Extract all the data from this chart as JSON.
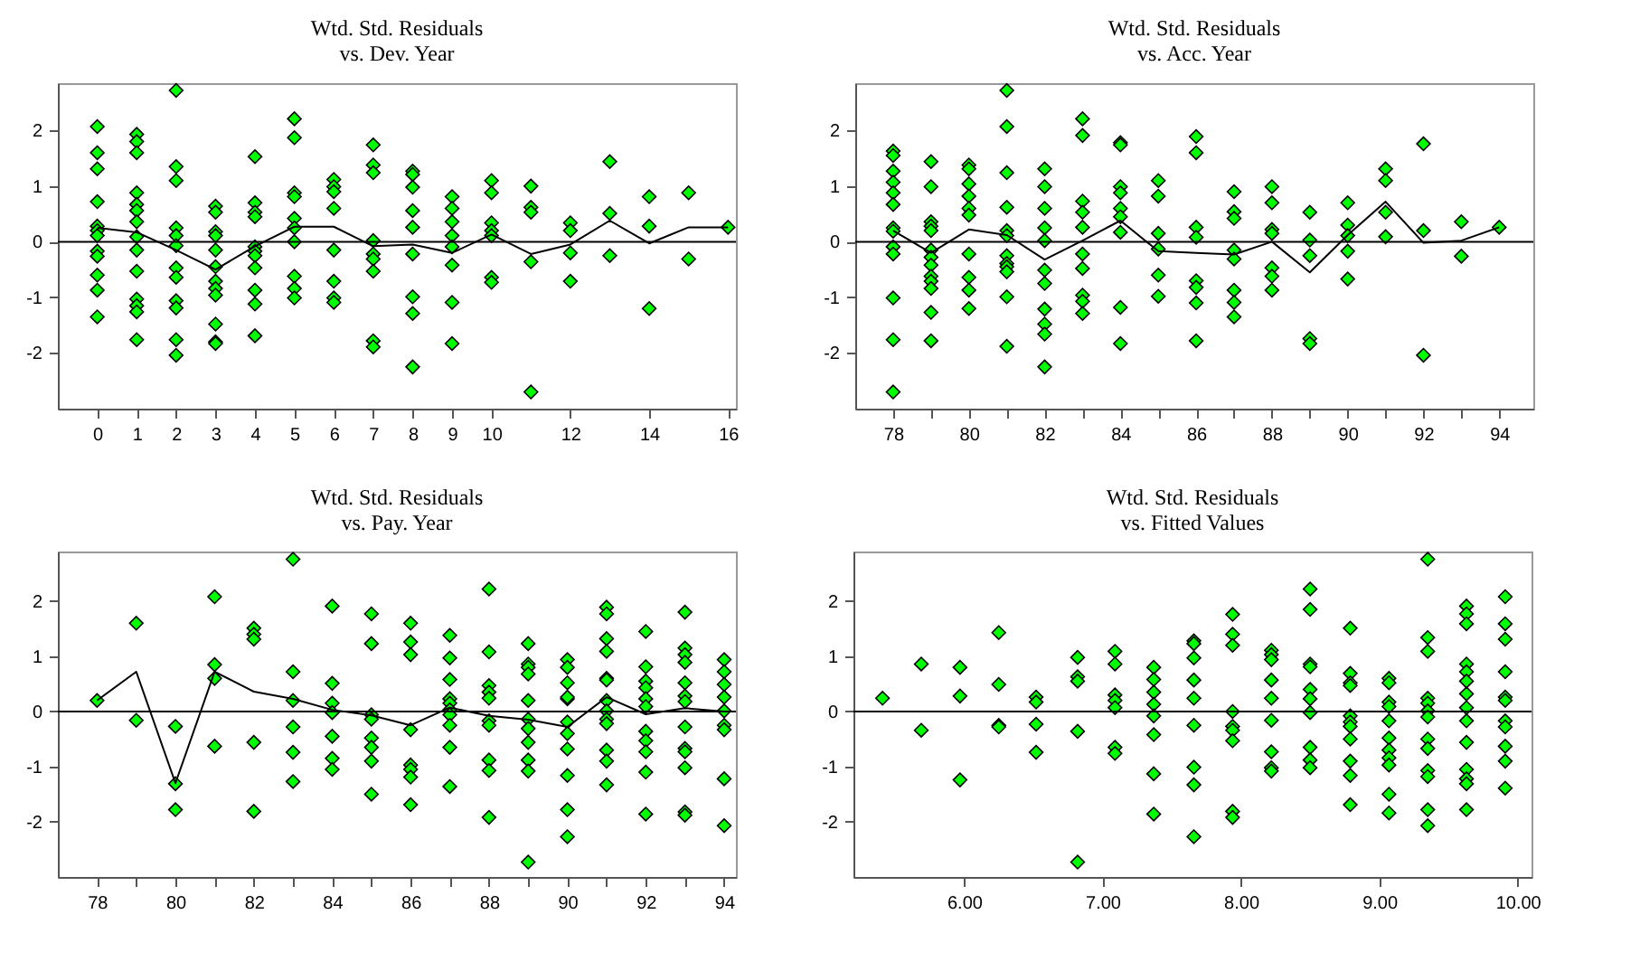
{
  "chart_data": [
    {
      "type": "scatter",
      "title": "Wtd. Std. Residuals\nvs. Dev. Year",
      "grid": false,
      "xlim": [
        -1,
        16.2
      ],
      "ylim": [
        -3,
        2.85
      ],
      "xticks": [
        0,
        1,
        2,
        3,
        4,
        5,
        6,
        7,
        8,
        9,
        10,
        12,
        14,
        16
      ],
      "yticks": [
        -2,
        -1,
        0,
        1,
        2
      ],
      "ref_lines": [
        {
          "axis": "y",
          "value": 0,
          "color": "#000000"
        }
      ],
      "series": [
        {
          "marker": "diamond",
          "color": "#00ff00",
          "x": [
            0,
            0,
            0,
            0,
            0,
            0,
            0,
            0,
            0,
            0,
            0,
            0,
            1,
            1,
            1,
            1,
            1,
            1,
            1,
            1,
            1,
            1,
            1,
            1,
            1,
            1,
            2,
            2,
            2,
            2,
            2,
            2,
            2,
            2,
            2,
            2,
            2,
            2,
            3,
            3,
            3,
            3,
            3,
            3,
            3,
            3,
            3,
            3,
            3,
            3,
            4,
            4,
            4,
            4,
            4,
            4,
            4,
            4,
            4,
            4,
            4,
            5,
            5,
            5,
            5,
            5,
            5,
            5,
            5,
            5,
            5,
            6,
            6,
            6,
            6,
            6,
            6,
            6,
            6,
            7,
            7,
            7,
            7,
            7,
            7,
            7,
            7,
            7,
            8,
            8,
            8,
            8,
            8,
            8,
            8,
            8,
            8,
            9,
            9,
            9,
            9,
            9,
            9,
            9,
            9,
            10,
            10,
            10,
            10,
            10,
            10,
            10,
            11,
            11,
            11,
            11,
            11,
            12,
            12,
            12,
            12,
            13,
            13,
            13,
            14,
            14,
            14,
            15,
            15,
            16
          ],
          "values": [
            2.07,
            1.6,
            1.31,
            0.72,
            0.28,
            0.2,
            0.11,
            -0.17,
            -0.26,
            -0.6,
            -0.87,
            -1.35,
            1.93,
            1.8,
            1.6,
            0.88,
            0.67,
            0.56,
            0.36,
            0.09,
            -0.15,
            -0.53,
            -1.03,
            -1.15,
            -1.26,
            -1.76,
            2.72,
            1.35,
            1.1,
            0.25,
            0.11,
            -0.07,
            -0.47,
            -0.64,
            -1.06,
            -1.19,
            -1.76,
            -2.04,
            0.64,
            0.53,
            0.18,
            0.11,
            -0.15,
            -0.45,
            -0.71,
            -0.84,
            -0.96,
            -1.48,
            -1.8,
            -1.83,
            1.53,
            0.7,
            0.53,
            0.45,
            -0.09,
            -0.17,
            -0.25,
            -0.47,
            -0.87,
            -1.12,
            -1.69,
            2.21,
            1.87,
            0.88,
            0.81,
            0.42,
            0.25,
            0,
            -0.62,
            -0.84,
            -1.01,
            1.12,
            0.99,
            0.9,
            0.6,
            -0.15,
            -0.71,
            -1.01,
            -1.09,
            1.74,
            1.38,
            1.24,
            0.02,
            -0.22,
            -0.31,
            -0.53,
            -1.78,
            -1.89,
            1.27,
            1.21,
            0.98,
            0.56,
            0.26,
            -0.22,
            -0.99,
            -1.29,
            -2.25,
            0.81,
            0.6,
            0.36,
            0.11,
            -0.09,
            -0.42,
            -1.09,
            -1.83,
            1.1,
            0.88,
            0.34,
            0.2,
            0.11,
            -0.64,
            -0.73,
            1,
            0.62,
            0.53,
            -0.36,
            -2.7,
            0.34,
            0.2,
            -0.2,
            -0.71,
            1.44,
            0.51,
            -0.25,
            0.81,
            0.28,
            -1.2,
            0.88,
            -0.31,
            0.26
          ]
        },
        {
          "type": "line",
          "color": "#000000",
          "x": [
            0,
            1,
            2,
            3,
            4,
            5,
            6,
            7,
            8,
            9,
            10,
            11,
            12,
            13,
            14,
            15,
            16
          ],
          "values": [
            0.25,
            0.17,
            -0.15,
            -0.5,
            -0.08,
            0.27,
            0.27,
            -0.08,
            -0.05,
            -0.2,
            0.13,
            -0.22,
            -0.05,
            0.38,
            -0.03,
            0.26,
            0.26
          ]
        }
      ]
    },
    {
      "type": "scatter",
      "title": "Wtd. Std. Residuals\nvs. Acc. Year",
      "grid": false,
      "xlim": [
        77,
        94.9
      ],
      "ylim": [
        -3,
        2.85
      ],
      "xticks": [
        78,
        {
          "value": 79,
          "label": null
        },
        80,
        {
          "value": 81,
          "label": null
        },
        82,
        {
          "value": 83,
          "label": null
        },
        84,
        {
          "value": 85,
          "label": null
        },
        86,
        {
          "value": 87,
          "label": null
        },
        88,
        {
          "value": 89,
          "label": null
        },
        90,
        {
          "value": 91,
          "label": null
        },
        92,
        {
          "value": 93,
          "label": null
        },
        94
      ],
      "yticks": [
        -2,
        -1,
        0,
        1,
        2
      ],
      "ref_lines": [
        {
          "axis": "y",
          "value": 0,
          "color": "#000000"
        }
      ],
      "series": [
        {
          "marker": "diamond",
          "color": "#00ff00",
          "x": [
            78,
            78,
            78,
            78,
            78,
            78,
            78,
            78,
            78,
            78,
            78,
            78,
            78,
            79,
            79,
            79,
            79,
            79,
            79,
            79,
            79,
            79,
            79,
            79,
            79,
            79,
            80,
            80,
            80,
            80,
            80,
            80,
            80,
            80,
            80,
            80,
            81,
            81,
            81,
            81,
            81,
            81,
            81,
            81,
            81,
            81,
            81,
            81,
            82,
            82,
            82,
            82,
            82,
            82,
            82,
            82,
            82,
            82,
            82,
            83,
            83,
            83,
            83,
            83,
            83,
            83,
            83,
            83,
            83,
            84,
            84,
            84,
            84,
            84,
            84,
            84,
            84,
            84,
            85,
            85,
            85,
            85,
            85,
            85,
            86,
            86,
            86,
            86,
            86,
            86,
            86,
            86,
            87,
            87,
            87,
            87,
            87,
            87,
            87,
            87,
            88,
            88,
            88,
            88,
            88,
            88,
            88,
            89,
            89,
            89,
            89,
            89,
            90,
            90,
            90,
            90,
            90,
            91,
            91,
            91,
            91,
            92,
            92,
            92,
            93,
            93,
            94
          ],
          "values": [
            1.63,
            1.55,
            1.27,
            1.07,
            0.88,
            0.67,
            0.25,
            0.19,
            -0.09,
            -0.22,
            -1.01,
            -1.76,
            -2.7,
            1.44,
            0.99,
            0.36,
            0.28,
            0.2,
            -0.15,
            -0.28,
            -0.42,
            -0.62,
            -0.71,
            -0.84,
            -1.27,
            -1.78,
            1.38,
            1.31,
            1.04,
            0.82,
            0.6,
            0.48,
            -0.22,
            -0.64,
            -0.87,
            -1.2,
            2.72,
            2.07,
            1.24,
            0.62,
            0.2,
            0.11,
            -0.25,
            -0.39,
            -0.45,
            -0.54,
            -0.99,
            -1.88,
            1.31,
            0.99,
            0.6,
            0.25,
            0.02,
            -0.51,
            -0.75,
            -1.21,
            -1.48,
            -1.66,
            -2.25,
            2.21,
            1.91,
            0.73,
            0.53,
            0.26,
            -0.22,
            -0.48,
            -0.96,
            -1.07,
            -1.29,
            1.78,
            1.74,
            0.99,
            0.88,
            0.6,
            0.45,
            0.17,
            -1.18,
            -1.83,
            1.1,
            0.82,
            0.15,
            -0.13,
            -0.6,
            -0.98,
            1.89,
            1.6,
            0.26,
            0.08,
            -0.7,
            -0.82,
            -1.1,
            -1.78,
            0.9,
            0.54,
            0.42,
            -0.15,
            -0.31,
            -0.87,
            -1.09,
            -1.35,
            0.99,
            0.7,
            0.22,
            0.15,
            -0.47,
            -0.62,
            -0.87,
            0.53,
            0.03,
            -0.25,
            -1.74,
            -1.83,
            0.7,
            0.3,
            0.11,
            -0.17,
            -0.67,
            1.31,
            1.1,
            0.53,
            0.09,
            1.76,
            0.2,
            -2.04,
            0.36,
            -0.26,
            0.26
          ]
        },
        {
          "type": "line",
          "color": "#000000",
          "x": [
            78,
            79,
            80,
            81,
            82,
            83,
            84,
            85,
            86,
            87,
            88,
            89,
            90,
            91,
            92,
            93,
            94
          ],
          "values": [
            0.2,
            -0.2,
            0.22,
            0.12,
            -0.32,
            0.02,
            0.38,
            -0.17,
            -0.2,
            -0.23,
            0,
            -0.55,
            0.12,
            0.72,
            -0.02,
            0.02,
            0.26
          ]
        }
      ]
    },
    {
      "type": "scatter",
      "title": "Wtd. Std. Residuals\nvs. Pay. Year",
      "grid": false,
      "xlim": [
        77,
        94.3
      ],
      "ylim": [
        -3,
        2.9
      ],
      "xticks": [
        78,
        {
          "value": 79,
          "label": null
        },
        80,
        {
          "value": 81,
          "label": null
        },
        82,
        {
          "value": 83,
          "label": null
        },
        84,
        {
          "value": 85,
          "label": null
        },
        86,
        {
          "value": 87,
          "label": null
        },
        88,
        {
          "value": 89,
          "label": null
        },
        90,
        {
          "value": 91,
          "label": null
        },
        92,
        {
          "value": 93,
          "label": null
        },
        94
      ],
      "yticks": [
        -2,
        -1,
        0,
        1,
        2
      ],
      "ref_lines": [
        {
          "axis": "y",
          "value": 0,
          "color": "#000000"
        }
      ],
      "series": [
        {
          "marker": "diamond",
          "color": "#00ff00",
          "x": [
            78,
            79,
            79,
            80,
            80,
            80,
            81,
            81,
            81,
            81,
            82,
            82,
            82,
            82,
            82,
            83,
            83,
            83,
            83,
            83,
            83,
            84,
            84,
            84,
            84,
            84,
            84,
            84,
            85,
            85,
            85,
            85,
            85,
            85,
            85,
            85,
            86,
            86,
            86,
            86,
            86,
            86,
            86,
            86,
            87,
            87,
            87,
            87,
            87,
            87,
            87,
            87,
            87,
            87,
            88,
            88,
            88,
            88,
            88,
            88,
            88,
            88,
            88,
            88,
            89,
            89,
            89,
            89,
            89,
            89,
            89,
            89,
            89,
            89,
            89,
            90,
            90,
            90,
            90,
            90,
            90,
            90,
            90,
            90,
            90,
            90,
            91,
            91,
            91,
            91,
            91,
            91,
            91,
            91,
            91,
            91,
            91,
            91,
            91,
            92,
            92,
            92,
            92,
            92,
            92,
            92,
            92,
            92,
            92,
            92,
            93,
            93,
            93,
            93,
            93,
            93,
            93,
            93,
            93,
            93,
            93,
            93,
            93,
            94,
            94,
            94,
            94,
            94,
            94,
            94,
            94,
            94
          ],
          "values": [
            0.2,
            1.6,
            -0.16,
            -0.27,
            -1.31,
            -1.78,
            2.08,
            0.85,
            0.6,
            -0.63,
            1.51,
            1.4,
            1.31,
            -0.56,
            -1.81,
            2.76,
            0.72,
            0.2,
            -0.28,
            -0.74,
            -1.27,
            1.91,
            0.51,
            0.15,
            -0.02,
            -0.45,
            -0.85,
            -1.05,
            1.77,
            1.23,
            -0.06,
            -0.14,
            -0.48,
            -0.65,
            -0.9,
            -1.5,
            1.6,
            1.26,
            1.03,
            -0.33,
            -0.97,
            -1.05,
            -1.19,
            -1.69,
            1.38,
            0.97,
            0.58,
            0.23,
            0.15,
            0.03,
            -0.06,
            -0.25,
            -0.65,
            -1.36,
            2.22,
            1.08,
            0.47,
            0.35,
            0.24,
            -0.17,
            -0.25,
            -0.88,
            -1.07,
            -1.92,
            1.23,
            0.86,
            0.8,
            0.68,
            0.2,
            -0.14,
            -0.31,
            -0.56,
            -0.88,
            -1.08,
            -2.73,
            0.94,
            0.8,
            0.52,
            0.23,
            0.26,
            -0.19,
            -0.4,
            -0.68,
            -1.16,
            -1.78,
            -2.27,
            1.89,
            1.77,
            1.32,
            1.09,
            0.6,
            0.57,
            0.2,
            0.01,
            -0.14,
            -0.22,
            -0.7,
            -0.9,
            -1.33,
            1.45,
            0.81,
            0.55,
            0.43,
            0.23,
            0.09,
            -0.36,
            -0.53,
            -0.73,
            -1.1,
            -1.86,
            1.8,
            1.15,
            1.03,
            0.89,
            0.52,
            0.28,
            0.18,
            -0.28,
            -0.67,
            -0.73,
            -1.02,
            -1.82,
            -1.88,
            0.94,
            0.72,
            0.49,
            0.26,
            0.01,
            -0.25,
            -0.33,
            -1.22,
            -2.07
          ]
        },
        {
          "type": "line",
          "color": "#000000",
          "x": [
            78,
            79,
            80,
            81,
            82,
            83,
            84,
            85,
            86,
            87,
            88,
            89,
            90,
            91,
            92,
            93,
            94
          ],
          "values": [
            0.2,
            0.72,
            -1.3,
            0.72,
            0.36,
            0.23,
            0.03,
            -0.07,
            -0.25,
            0.07,
            -0.08,
            -0.15,
            -0.28,
            0.26,
            -0.05,
            0.06,
            0
          ]
        }
      ]
    },
    {
      "type": "scatter",
      "title": "Wtd. Std. Residuals\nvs. Fitted Values",
      "grid": false,
      "xlim": [
        5.2,
        10.1
      ],
      "ylim": [
        -3,
        2.9
      ],
      "xticks": [
        {
          "value": 6,
          "label": "6.00"
        },
        {
          "value": 7,
          "label": "7.00"
        },
        {
          "value": 8,
          "label": "8.00"
        },
        {
          "value": 9,
          "label": "9.00"
        },
        {
          "value": 10,
          "label": "10.00"
        }
      ],
      "yticks": [
        -2,
        -1,
        0,
        1,
        2
      ],
      "ref_lines": [
        {
          "axis": "y",
          "value": 0,
          "color": "#000000"
        }
      ],
      "series": [
        {
          "marker": "diamond",
          "color": "#00ff00",
          "x": [
            5.41,
            5.69,
            5.69,
            5.97,
            5.97,
            5.97,
            6.25,
            6.25,
            6.25,
            6.25,
            6.52,
            6.52,
            6.52,
            6.52,
            6.82,
            6.82,
            6.82,
            6.82,
            6.82,
            7.09,
            7.09,
            7.09,
            7.09,
            7.09,
            7.09,
            7.09,
            7.37,
            7.37,
            7.37,
            7.37,
            7.37,
            7.37,
            7.37,
            7.37,
            7.66,
            7.66,
            7.66,
            7.66,
            7.66,
            7.66,
            7.66,
            7.66,
            7.66,
            7.94,
            7.94,
            7.94,
            7.94,
            7.94,
            7.94,
            7.94,
            7.94,
            7.94,
            8.22,
            8.22,
            8.22,
            8.22,
            8.22,
            8.22,
            8.22,
            8.22,
            8.22,
            8.5,
            8.5,
            8.5,
            8.5,
            8.5,
            8.5,
            8.5,
            8.5,
            8.5,
            8.5,
            8.79,
            8.79,
            8.79,
            8.79,
            8.79,
            8.79,
            8.79,
            8.79,
            8.79,
            8.79,
            8.79,
            9.07,
            9.07,
            9.07,
            9.07,
            9.07,
            9.07,
            9.07,
            9.07,
            9.07,
            9.07,
            9.07,
            9.35,
            9.35,
            9.35,
            9.35,
            9.35,
            9.35,
            9.35,
            9.35,
            9.35,
            9.35,
            9.35,
            9.35,
            9.35,
            9.63,
            9.63,
            9.63,
            9.63,
            9.63,
            9.63,
            9.63,
            9.63,
            9.63,
            9.63,
            9.63,
            9.63,
            9.63,
            9.63,
            9.91,
            9.91,
            9.91,
            9.91,
            9.91,
            9.91,
            9.91,
            9.91,
            9.91,
            9.91,
            9.91
          ],
          "values": [
            0.24,
            0.86,
            -0.34,
            0.8,
            0.28,
            -1.24,
            1.43,
            0.49,
            -0.25,
            -0.28,
            0.26,
            0.17,
            -0.23,
            -0.74,
            0.98,
            0.63,
            0.55,
            -0.36,
            -2.73,
            1.09,
            0.86,
            0.3,
            0.2,
            0.07,
            -0.65,
            -0.76,
            0.8,
            0.58,
            0.35,
            0.13,
            -0.08,
            -0.42,
            -1.13,
            -1.86,
            1.28,
            1.23,
            0.97,
            0.57,
            0.24,
            -0.25,
            -1.01,
            -1.33,
            -2.27,
            1.76,
            1.4,
            1.2,
            0,
            -0.27,
            -0.34,
            -0.53,
            -1.81,
            -1.92,
            1.11,
            1.03,
            0.94,
            0.57,
            0.24,
            -0.16,
            -0.73,
            -1.02,
            -1.08,
            2.22,
            1.85,
            0.86,
            0.81,
            0.4,
            0.23,
            -0.02,
            -0.65,
            -0.88,
            -1.02,
            1.51,
            0.69,
            0.52,
            0.47,
            -0.08,
            -0.19,
            -0.27,
            -0.5,
            -0.9,
            -1.16,
            -1.69,
            0.6,
            0.52,
            0.17,
            0.09,
            -0.17,
            -0.48,
            -0.7,
            -0.84,
            -0.97,
            -1.5,
            -1.84,
            2.76,
            1.34,
            1.09,
            0.24,
            0.15,
            0.01,
            -0.1,
            -0.5,
            -0.67,
            -1.07,
            -1.18,
            -1.78,
            -2.07,
            1.91,
            1.77,
            1.59,
            0.86,
            0.72,
            0.55,
            0.32,
            0.07,
            -0.17,
            -0.56,
            -1.05,
            -1.22,
            -1.31,
            -1.78,
            2.08,
            1.59,
            1.31,
            0.72,
            0.26,
            0.2,
            -0.17,
            -0.28,
            -0.63,
            -0.9,
            -1.39
          ]
        }
      ]
    }
  ]
}
